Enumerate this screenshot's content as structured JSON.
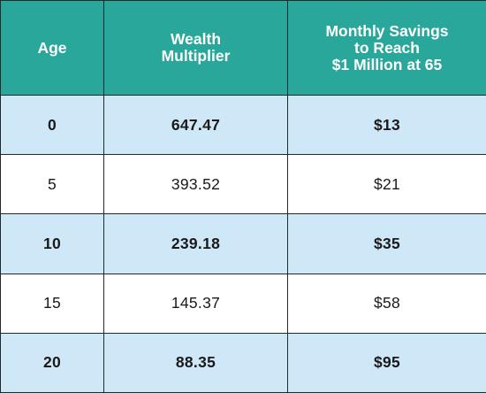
{
  "headers": {
    "age": [
      "Age"
    ],
    "multiplier": [
      "Wealth",
      "Multiplier"
    ],
    "savings": [
      "Monthly Savings",
      "to Reach",
      "$1 Million at 65"
    ]
  },
  "rows": [
    {
      "age": "0",
      "multiplier": "647.47",
      "savings": "$13"
    },
    {
      "age": "5",
      "multiplier": "393.52",
      "savings": "$21"
    },
    {
      "age": "10",
      "multiplier": "239.18",
      "savings": "$35"
    },
    {
      "age": "15",
      "multiplier": "145.37",
      "savings": "$58"
    },
    {
      "age": "20",
      "multiplier": "88.35",
      "savings": "$95"
    }
  ],
  "colors": {
    "header_bg": "#2aa79b",
    "header_text": "#ffffff",
    "row_shaded_bg": "#cfe8f7",
    "row_plain_bg": "#ffffff",
    "border": "#1f2a2e"
  }
}
